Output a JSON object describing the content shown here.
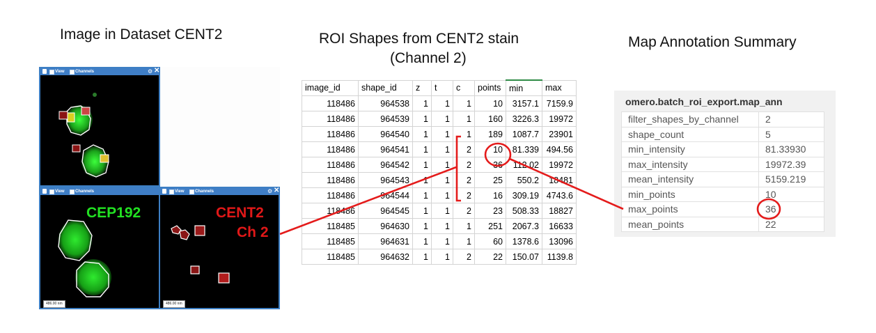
{
  "headings": {
    "image": "Image in Dataset CENT2",
    "roi_line1": "ROI Shapes from CENT2 stain",
    "roi_line2": "(Channel 2)",
    "map": "Map Annotation Summary"
  },
  "viewer": {
    "bar_view": "View",
    "bar_channels": "Channels",
    "scale": "486.00 nm",
    "label_cep192": "CEP192",
    "label_cent2": "CENT2",
    "label_ch2": "Ch 2",
    "colors": {
      "bar": "#3f7ec6",
      "green": "#22c022",
      "red": "#c0141c"
    }
  },
  "roi_table": {
    "columns": [
      "image_id",
      "shape_id",
      "z",
      "t",
      "c",
      "points",
      "min",
      "max"
    ],
    "rows": [
      [
        "118486",
        "964538",
        "1",
        "1",
        "1",
        "10",
        "3157.1",
        "7159.9"
      ],
      [
        "118486",
        "964539",
        "1",
        "1",
        "1",
        "160",
        "3226.3",
        "19972"
      ],
      [
        "118486",
        "964540",
        "1",
        "1",
        "1",
        "189",
        "1087.7",
        "23901"
      ],
      [
        "118486",
        "964541",
        "1",
        "1",
        "2",
        "10",
        "81.339",
        "494.56"
      ],
      [
        "118486",
        "964542",
        "1",
        "1",
        "2",
        "36",
        "112.02",
        "19972"
      ],
      [
        "118486",
        "964543",
        "1",
        "1",
        "2",
        "25",
        "550.2",
        "18481"
      ],
      [
        "118486",
        "964544",
        "1",
        "1",
        "2",
        "16",
        "309.19",
        "4743.6"
      ],
      [
        "118486",
        "964545",
        "1",
        "1",
        "2",
        "23",
        "508.33",
        "18827"
      ],
      [
        "118485",
        "964630",
        "1",
        "1",
        "1",
        "251",
        "2067.3",
        "16633"
      ],
      [
        "118485",
        "964631",
        "1",
        "1",
        "1",
        "60",
        "1378.6",
        "13096"
      ],
      [
        "118485",
        "964632",
        "1",
        "1",
        "2",
        "22",
        "150.07",
        "1139.8"
      ]
    ]
  },
  "map_annotation": {
    "title": "omero.batch_roi_export.map_ann",
    "rows": [
      {
        "key": "filter_shapes_by_channel",
        "value": "2"
      },
      {
        "key": "shape_count",
        "value": "5"
      },
      {
        "key": "min_intensity",
        "value": "81.33930"
      },
      {
        "key": "max_intensity",
        "value": "19972.39"
      },
      {
        "key": "mean_intensity",
        "value": "5159.219"
      },
      {
        "key": "min_points",
        "value": "10"
      },
      {
        "key": "max_points",
        "value": "36"
      },
      {
        "key": "mean_points",
        "value": "22"
      }
    ]
  },
  "annotation_color": "#e41b1b"
}
